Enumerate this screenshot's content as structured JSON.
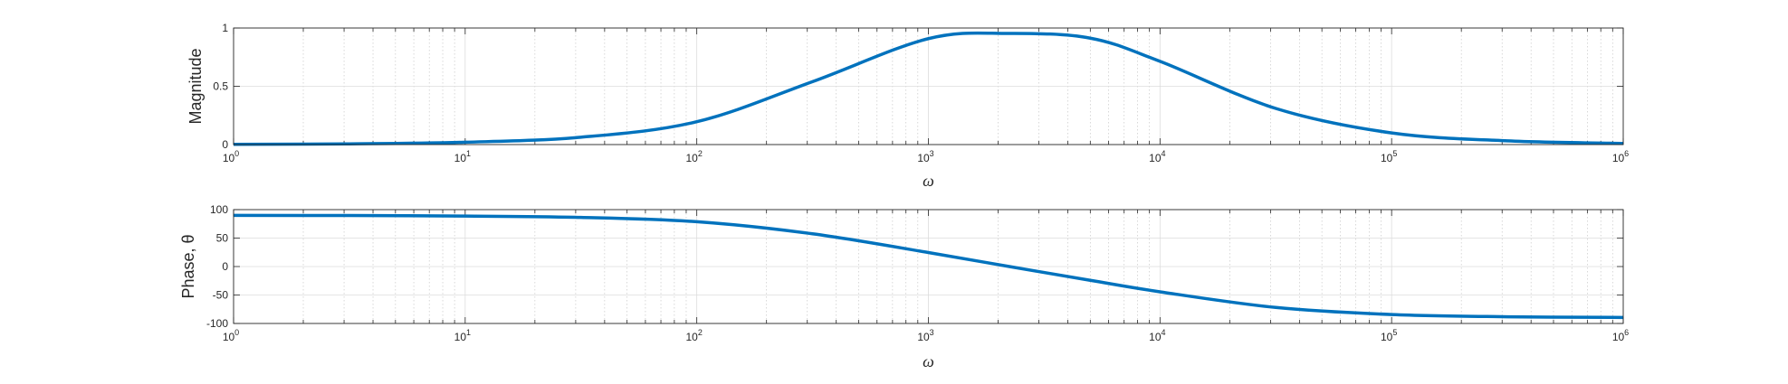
{
  "chart_data": [
    {
      "type": "line",
      "xscale": "log",
      "xlim": [
        1,
        1000000
      ],
      "ylim": [
        0,
        1
      ],
      "xlabel": "ω",
      "ylabel": "Magnitude",
      "yticks": [
        0,
        0.5,
        1
      ],
      "ytick_labels": [
        "0",
        "0.5",
        "1"
      ],
      "xticks": [
        1,
        10,
        100,
        1000,
        10000,
        100000,
        1000000
      ],
      "xtick_labels": [
        {
          "base": "10",
          "exp": "0"
        },
        {
          "base": "10",
          "exp": "1"
        },
        {
          "base": "10",
          "exp": "2"
        },
        {
          "base": "10",
          "exp": "3"
        },
        {
          "base": "10",
          "exp": "4"
        },
        {
          "base": "10",
          "exp": "5"
        },
        {
          "base": "10",
          "exp": "6"
        }
      ],
      "grid": true,
      "series": [
        {
          "color": "#0072BD",
          "x": [
            1,
            3.16,
            10,
            31.6,
            100,
            316,
            1000,
            2236,
            5000,
            10000,
            31600,
            100000,
            316000,
            1000000
          ],
          "y": [
            0.002,
            0.006,
            0.02,
            0.063,
            0.196,
            0.54,
            0.909,
            0.953,
            0.913,
            0.714,
            0.31,
            0.1,
            0.032,
            0.01
          ]
        }
      ]
    },
    {
      "type": "line",
      "xscale": "log",
      "xlim": [
        1,
        1000000
      ],
      "ylim": [
        -100,
        100
      ],
      "xlabel": "ω",
      "ylabel": "Phase, θ",
      "yticks": [
        -100,
        -50,
        0,
        50,
        100
      ],
      "ytick_labels": [
        "-100",
        "-50",
        "0",
        "50",
        "100"
      ],
      "xticks": [
        1,
        10,
        100,
        1000,
        10000,
        100000,
        1000000
      ],
      "xtick_labels": [
        {
          "base": "10",
          "exp": "0"
        },
        {
          "base": "10",
          "exp": "1"
        },
        {
          "base": "10",
          "exp": "2"
        },
        {
          "base": "10",
          "exp": "3"
        },
        {
          "base": "10",
          "exp": "4"
        },
        {
          "base": "10",
          "exp": "5"
        },
        {
          "base": "10",
          "exp": "6"
        }
      ],
      "grid": true,
      "series": [
        {
          "color": "#0072BD",
          "x": [
            1,
            3.16,
            10,
            31.6,
            100,
            316,
            1000,
            2236,
            5000,
            10000,
            31600,
            100000,
            316000,
            1000000
          ],
          "y": [
            89.9,
            89.6,
            88.7,
            86.3,
            78.7,
            57.5,
            24.6,
            0,
            -24.2,
            -44.4,
            -71.9,
            -84.3,
            -88.2,
            -89.4
          ]
        }
      ]
    }
  ]
}
